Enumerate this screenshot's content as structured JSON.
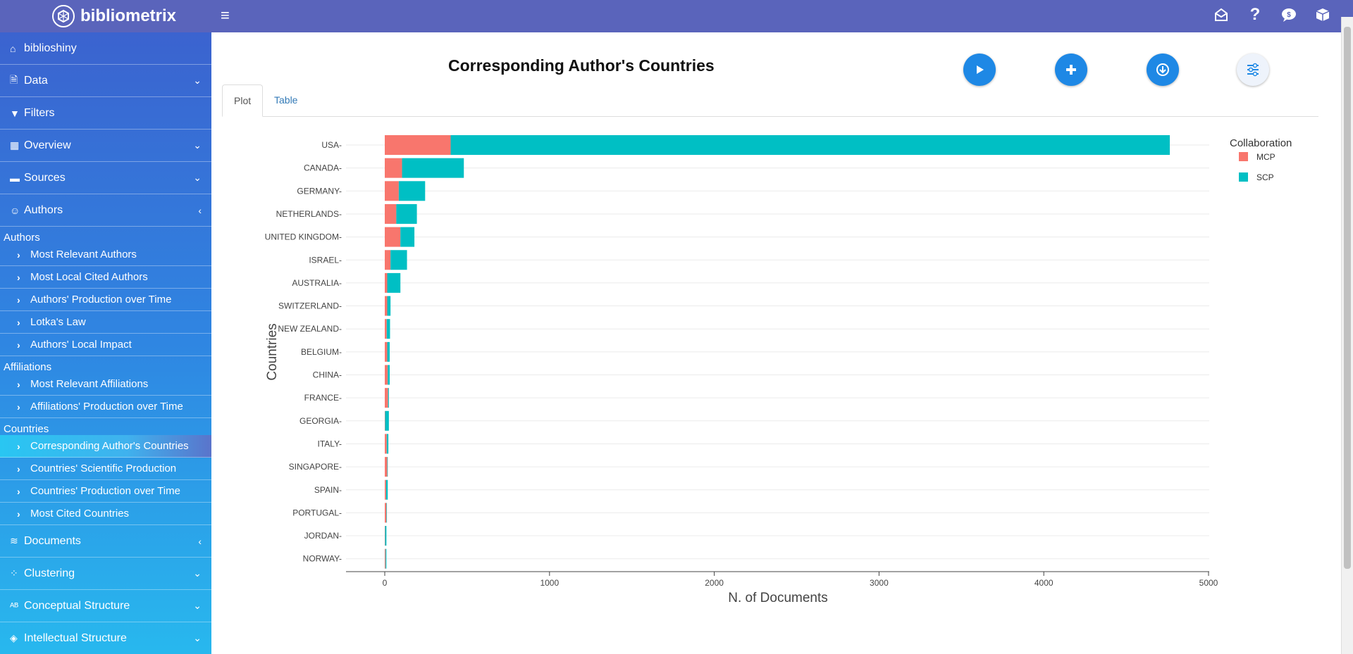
{
  "app": {
    "brand": "bibliometrix"
  },
  "sidebar": {
    "home": "biblioshiny",
    "data": "Data",
    "filters": "Filters",
    "overview": "Overview",
    "sources": "Sources",
    "authors": "Authors",
    "sec_authors": "Authors",
    "most_relevant_authors": "Most Relevant Authors",
    "most_local_cited_authors": "Most Local Cited Authors",
    "authors_production": "Authors' Production over Time",
    "lotkas_law": "Lotka's Law",
    "authors_local_impact": "Authors' Local Impact",
    "sec_affiliations": "Affiliations",
    "most_relevant_affiliations": "Most Relevant Affiliations",
    "affiliations_production": "Affiliations' Production over Time",
    "sec_countries": "Countries",
    "corresponding_author_countries": "Corresponding Author's Countries",
    "countries_scientific_production": "Countries' Scientific Production",
    "countries_production_time": "Countries' Production over Time",
    "most_cited_countries": "Most Cited Countries",
    "documents": "Documents",
    "clustering": "Clustering",
    "conceptual_structure": "Conceptual Structure",
    "intellectual_structure": "Intellectual Structure"
  },
  "main": {
    "title": "Corresponding Author's Countries",
    "tabs": [
      "Plot",
      "Table"
    ]
  },
  "colors": {
    "mcp": "#f8766d",
    "scp": "#00bfc4",
    "accent": "#1e88e5",
    "header": "#5a64bb"
  },
  "chart_data": {
    "type": "bar",
    "orientation": "horizontal",
    "stacked": true,
    "categories": [
      "USA",
      "CANADA",
      "GERMANY",
      "NETHERLANDS",
      "UNITED KINGDOM",
      "ISRAEL",
      "AUSTRALIA",
      "SWITZERLAND",
      "NEW ZEALAND",
      "BELGIUM",
      "CHINA",
      "FRANCE",
      "GEORGIA",
      "ITALY",
      "SINGAPORE",
      "SPAIN",
      "PORTUGAL",
      "JORDAN",
      "NORWAY"
    ],
    "series": [
      {
        "name": "MCP",
        "values": [
          400,
          105,
          85,
          70,
          95,
          35,
          15,
          15,
          12,
          15,
          18,
          20,
          2,
          12,
          15,
          8,
          10,
          2,
          5
        ]
      },
      {
        "name": "SCP",
        "values": [
          4365,
          375,
          160,
          125,
          85,
          100,
          80,
          20,
          20,
          15,
          12,
          5,
          23,
          10,
          3,
          10,
          3,
          8,
          5
        ]
      }
    ],
    "xlabel": "N. of Documents",
    "ylabel": "Countries",
    "legend_title": "Collaboration",
    "xlim": [
      0,
      5000
    ],
    "xticks": [
      0,
      1000,
      2000,
      3000,
      4000,
      5000
    ],
    "grid": true,
    "legend_position": "right"
  }
}
